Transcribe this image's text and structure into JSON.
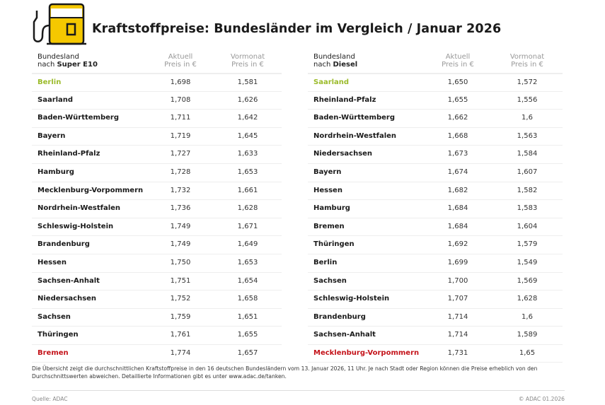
{
  "title": "Kraftstoffpreise: Bundesländer im Vergleich / Januar 2026",
  "colors": {
    "accent_yellow": "#f5c800",
    "lowest": "#9bbb2a",
    "highest": "#c4131a"
  },
  "icon": "fuel-pump-icon",
  "tables": {
    "super": {
      "header": {
        "name_line1": "Bundesland",
        "name_prefix": "nach ",
        "name_bold": "Super E10",
        "current_line1": "Aktuell",
        "current_line2": "Preis in €",
        "previous_line1": "Vormonat",
        "previous_line2": "Preis in €"
      },
      "rows": [
        {
          "name": "Berlin",
          "current": "1,698",
          "previous": "1,581",
          "highlight": "lowest"
        },
        {
          "name": "Saarland",
          "current": "1,708",
          "previous": "1,626"
        },
        {
          "name": "Baden-Württemberg",
          "current": "1,711",
          "previous": "1,642"
        },
        {
          "name": "Bayern",
          "current": "1,719",
          "previous": "1,645"
        },
        {
          "name": "Rheinland-Pfalz",
          "current": "1,727",
          "previous": "1,633"
        },
        {
          "name": "Hamburg",
          "current": "1,728",
          "previous": "1,653"
        },
        {
          "name": "Mecklenburg-Vorpommern",
          "current": "1,732",
          "previous": "1,661"
        },
        {
          "name": "Nordrhein-Westfalen",
          "current": "1,736",
          "previous": "1,628"
        },
        {
          "name": "Schleswig-Holstein",
          "current": "1,749",
          "previous": "1,671"
        },
        {
          "name": "Brandenburg",
          "current": "1,749",
          "previous": "1,649"
        },
        {
          "name": "Hessen",
          "current": "1,750",
          "previous": "1,653"
        },
        {
          "name": "Sachsen-Anhalt",
          "current": "1,751",
          "previous": "1,654"
        },
        {
          "name": "Niedersachsen",
          "current": "1,752",
          "previous": "1,658"
        },
        {
          "name": "Sachsen",
          "current": "1,759",
          "previous": "1,651"
        },
        {
          "name": "Thüringen",
          "current": "1,761",
          "previous": "1,655"
        },
        {
          "name": "Bremen",
          "current": "1,774",
          "previous": "1,657",
          "highlight": "highest"
        }
      ]
    },
    "diesel": {
      "header": {
        "name_line1": "Bundesland",
        "name_prefix": "nach ",
        "name_bold": "Diesel",
        "current_line1": "Aktuell",
        "current_line2": "Preis in €",
        "previous_line1": "Vormonat",
        "previous_line2": "Preis in €"
      },
      "rows": [
        {
          "name": "Saarland",
          "current": "1,650",
          "previous": "1,572",
          "highlight": "lowest"
        },
        {
          "name": "Rheinland-Pfalz",
          "current": "1,655",
          "previous": "1,556"
        },
        {
          "name": "Baden-Württemberg",
          "current": "1,662",
          "previous": "1,6"
        },
        {
          "name": "Nordrhein-Westfalen",
          "current": "1,668",
          "previous": "1,563"
        },
        {
          "name": "Niedersachsen",
          "current": "1,673",
          "previous": "1,584"
        },
        {
          "name": "Bayern",
          "current": "1,674",
          "previous": "1,607"
        },
        {
          "name": "Hessen",
          "current": "1,682",
          "previous": "1,582"
        },
        {
          "name": "Hamburg",
          "current": "1,684",
          "previous": "1,583"
        },
        {
          "name": "Bremen",
          "current": "1,684",
          "previous": "1,604"
        },
        {
          "name": "Thüringen",
          "current": "1,692",
          "previous": "1,579"
        },
        {
          "name": "Berlin",
          "current": "1,699",
          "previous": "1,549"
        },
        {
          "name": "Sachsen",
          "current": "1,700",
          "previous": "1,569"
        },
        {
          "name": "Schleswig-Holstein",
          "current": "1,707",
          "previous": "1,628"
        },
        {
          "name": "Brandenburg",
          "current": "1,714",
          "previous": "1,6"
        },
        {
          "name": "Sachsen-Anhalt",
          "current": "1,714",
          "previous": "1,589"
        },
        {
          "name": "Mecklenburg-Vorpommern",
          "current": "1,731",
          "previous": "1,65",
          "highlight": "highest"
        }
      ]
    }
  },
  "footnote": "Die Übersicht zeigt die durchschnittlichen Kraftstoffpreise in den 16 deutschen Bundesländern vom 13. Januar 2026, 11 Uhr. Je nach Stadt oder Region können die Preise erheblich von den Durchschnittswerten abweichen. Detaillierte Informationen gibt es unter www.adac.de/tanken.",
  "source": "Quelle: ADAC",
  "copyright": "© ADAC 01.2026"
}
